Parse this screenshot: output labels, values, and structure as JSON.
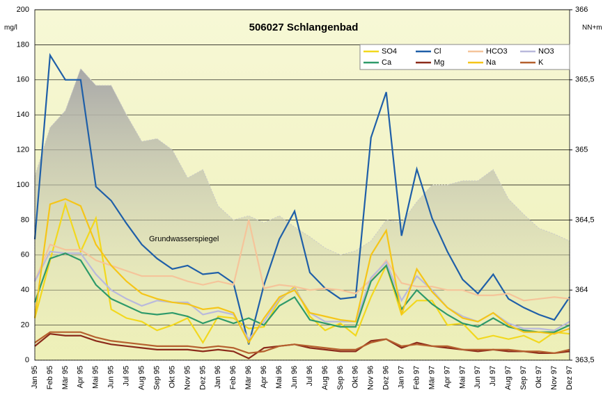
{
  "chart_data": {
    "type": "line",
    "title": "506027 Schlangenbad",
    "y_label": "mg/l",
    "y2_label": "NN+m",
    "categories": [
      "Jan 95",
      "Feb 95",
      "Mär 95",
      "Apr 95",
      "Mai 95",
      "Jun 95",
      "Jul 95",
      "Aug 95",
      "Sep 95",
      "Okt 95",
      "Nov 95",
      "Dez 95",
      "Jan 96",
      "Feb 96",
      "Mär 96",
      "Apr 96",
      "Mai 96",
      "Jun 96",
      "Jul 96",
      "Aug 96",
      "Sep 96",
      "Okt 96",
      "Nov 96",
      "Dez 96",
      "Jan 97",
      "Feb 97",
      "Mär 97",
      "Apr 97",
      "Mai 97",
      "Jun 97",
      "Jul 97",
      "Aug 97",
      "Sep 97",
      "Okt 97",
      "Nov 97",
      "Dez 97"
    ],
    "ylim": [
      0,
      200
    ],
    "yticks": [
      0,
      20,
      40,
      60,
      80,
      100,
      120,
      140,
      160,
      180,
      200
    ],
    "y2lim": [
      363.5,
      366
    ],
    "y2ticks": [
      {
        "value": 363.5,
        "label": "363,5"
      },
      {
        "value": 364,
        "label": "364"
      },
      {
        "value": 364.5,
        "label": "364,5"
      },
      {
        "value": 365,
        "label": "365"
      },
      {
        "value": 365.5,
        "label": "365,5"
      },
      {
        "value": 366,
        "label": "366"
      }
    ],
    "grid": true,
    "legend": "upper right",
    "series": [
      {
        "name": "SO4",
        "color": "#f2d81e",
        "values": [
          24,
          57,
          89,
          62,
          81,
          29,
          24,
          22,
          17,
          20,
          24,
          10,
          25,
          24,
          18,
          19,
          34,
          42,
          25,
          17,
          21,
          14,
          36,
          54,
          26,
          34,
          34,
          20,
          21,
          12,
          14,
          12,
          14,
          10,
          16,
          15
        ]
      },
      {
        "name": "Cl",
        "color": "#1f5fa8",
        "values": [
          69,
          174,
          160,
          160,
          99,
          91,
          78,
          66,
          58,
          52,
          54,
          49,
          50,
          44,
          9,
          43,
          69,
          85,
          50,
          41,
          35,
          36,
          127,
          153,
          71,
          109,
          81,
          62,
          46,
          38,
          49,
          35,
          30,
          26,
          23,
          36
        ]
      },
      {
        "name": "HCO3",
        "color": "#f5c49a",
        "values": [
          45,
          66,
          63,
          63,
          57,
          54,
          51,
          48,
          48,
          48,
          45,
          43,
          45,
          43,
          80,
          41,
          43,
          42,
          40,
          41,
          40,
          38,
          46,
          57,
          44,
          42,
          42,
          40,
          40,
          37,
          37,
          38,
          34,
          35,
          36,
          35
        ]
      },
      {
        "name": "NO3",
        "color": "#b9b9dc",
        "values": [
          45,
          62,
          61,
          61,
          49,
          40,
          35,
          31,
          34,
          33,
          33,
          26,
          28,
          26,
          12,
          22,
          35,
          41,
          27,
          22,
          22,
          22,
          47,
          56,
          34,
          48,
          40,
          30,
          25,
          22,
          27,
          21,
          18,
          18,
          17,
          22
        ]
      },
      {
        "name": "Ca",
        "color": "#2e9a6a",
        "values": [
          33,
          58,
          61,
          57,
          43,
          35,
          31,
          27,
          26,
          27,
          25,
          21,
          24,
          21,
          24,
          20,
          31,
          36,
          23,
          21,
          19,
          19,
          45,
          54,
          29,
          40,
          32,
          26,
          21,
          19,
          24,
          19,
          17,
          16,
          16,
          20
        ]
      },
      {
        "name": "Mg",
        "color": "#8b2a1a",
        "values": [
          8,
          15,
          14,
          14,
          11,
          9,
          8,
          7,
          6,
          6,
          6,
          5,
          6,
          5,
          1,
          7,
          8,
          9,
          7,
          6,
          5,
          5,
          11,
          12,
          7,
          10,
          8,
          7,
          6,
          5,
          6,
          5,
          5,
          4,
          4,
          5
        ]
      },
      {
        "name": "Na",
        "color": "#f5c518",
        "values": [
          24,
          89,
          92,
          88,
          66,
          54,
          45,
          38,
          35,
          33,
          32,
          29,
          30,
          27,
          10,
          24,
          36,
          40,
          27,
          25,
          23,
          22,
          60,
          74,
          26,
          52,
          39,
          30,
          24,
          22,
          27,
          20,
          16,
          16,
          15,
          18
        ]
      },
      {
        "name": "K",
        "color": "#b5602e",
        "values": [
          10,
          16,
          16,
          16,
          13,
          11,
          10,
          9,
          8,
          8,
          8,
          7,
          8,
          7,
          4,
          5,
          8,
          9,
          8,
          7,
          6,
          6,
          10,
          12,
          8,
          9,
          8,
          8,
          6,
          6,
          6,
          6,
          5,
          5,
          4,
          6
        ]
      },
      {
        "name": "Grundwasserspiegel",
        "type": "area",
        "axis": "y2",
        "color": "#b4b4b4",
        "values": [
          364.81,
          365.16,
          365.28,
          365.58,
          365.46,
          365.46,
          365.25,
          365.06,
          365.08,
          365.0,
          364.8,
          364.86,
          364.6,
          364.5,
          364.53,
          364.48,
          364.53,
          364.45,
          364.38,
          364.3,
          364.25,
          364.28,
          364.35,
          364.5,
          364.48,
          364.63,
          364.75,
          364.75,
          364.78,
          364.78,
          364.86,
          364.65,
          364.54,
          364.44,
          364.4,
          364.35
        ]
      }
    ]
  }
}
